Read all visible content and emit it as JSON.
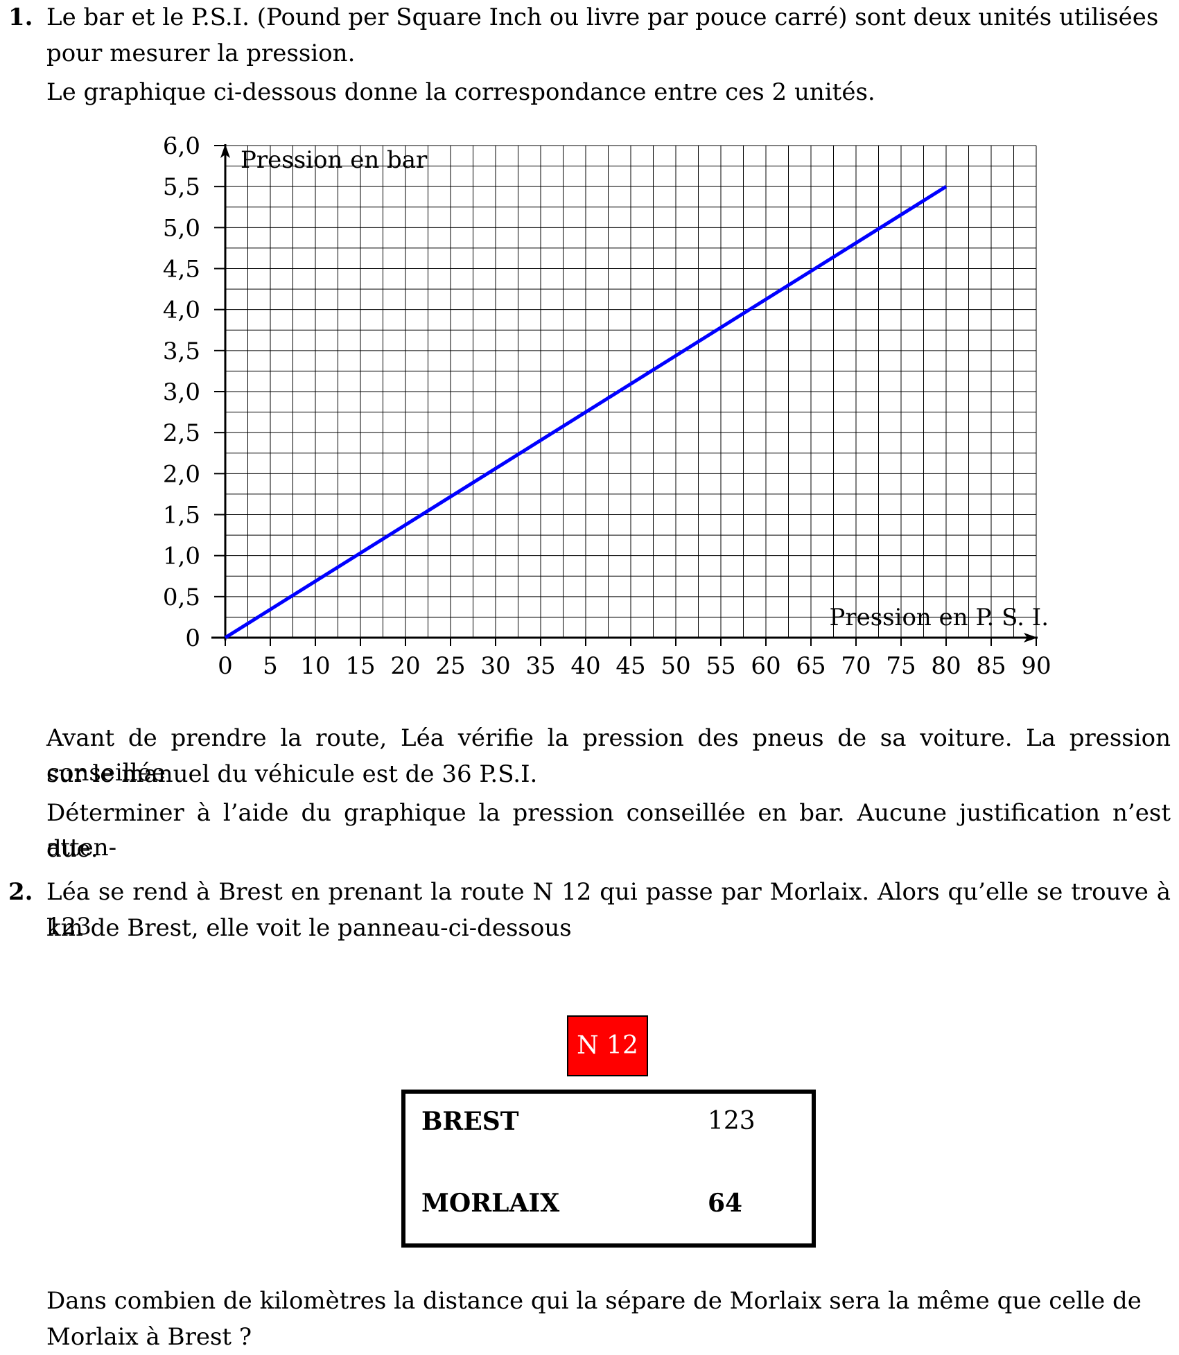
{
  "question1": {
    "number": "1.",
    "intro_line1": "Le bar et le P.S.I. (Pound per Square Inch ou livre par pouce carré) sont deux unités utilisées",
    "intro_line2": "pour mesurer la pression.",
    "intro_line3": "Le graphique ci-dessous donne la correspondance entre ces 2 unités.",
    "after_line1": "Avant de prendre la route, Léa vérifie la pression des pneus de sa voiture. La pression conseillée",
    "after_line2": "sur le manuel du véhicule est de 36 P.S.I.",
    "task_line1": "Déterminer à l’aide du graphique la pression conseillée en bar. Aucune justification n’est atten-",
    "task_line2": "due."
  },
  "chart_data": {
    "type": "line",
    "xlabel": "Pression en P. S. I.",
    "ylabel": "Pression en bar",
    "x_ticks": [
      "0",
      "5",
      "10",
      "15",
      "20",
      "25",
      "30",
      "35",
      "40",
      "45",
      "50",
      "55",
      "60",
      "65",
      "70",
      "75",
      "80",
      "85",
      "90"
    ],
    "y_ticks": [
      "0",
      "0,5",
      "1,0",
      "1,5",
      "2,0",
      "2,5",
      "3,0",
      "3,5",
      "4,0",
      "4,5",
      "5,0",
      "5,5",
      "6,0"
    ],
    "xlim": [
      0,
      90
    ],
    "ylim": [
      0,
      6
    ],
    "grid": true,
    "grid_minor_x": 2.5,
    "grid_minor_y": 0.25,
    "line_color": "#0000ff",
    "series": [
      {
        "x": [
          0,
          80
        ],
        "y": [
          0,
          5.5
        ]
      }
    ]
  },
  "question2": {
    "number": "2.",
    "line1": "Léa se rend à Brest en prenant la route N 12 qui passe par Morlaix. Alors qu’elle se trouve à 123",
    "line2": "km de Brest, elle voit le panneau-ci-dessous",
    "sign": {
      "route": "N 12",
      "route_color": "#ff0000",
      "rows": [
        {
          "city": "BREST",
          "distance": "123"
        },
        {
          "city": "MORLAIX",
          "distance": "64"
        }
      ]
    },
    "question_line1": "Dans combien de kilomètres la distance qui la sépare de Morlaix sera la même que celle de",
    "question_line2": "Morlaix à Brest ?"
  }
}
